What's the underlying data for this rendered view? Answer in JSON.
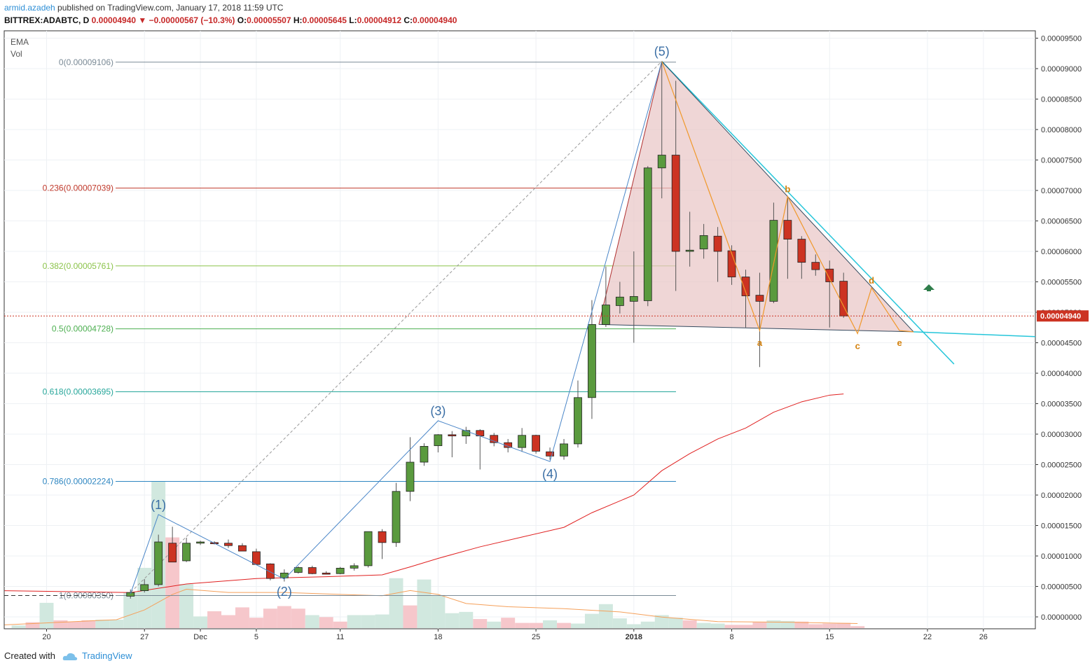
{
  "header": {
    "user": "armid.azadeh",
    "published": " published on TradingView.com, January 17, 2018 11:59 UTC",
    "symbol": "BITTREX:ADABTC, D",
    "last": "0.00004940",
    "arrow": "▼",
    "change": "−0.00000567 (−10.3%)",
    "o_label": "O:",
    "o": "0.00005507",
    "h_label": "H:",
    "h": "0.00005645",
    "l_label": "L:",
    "l": "0.00004912",
    "c_label": "C:",
    "c": "0.00004940"
  },
  "indicators": {
    "ema": "EMA",
    "vol": "Vol"
  },
  "footer": {
    "created": "Created with",
    "brand": "TradingView"
  },
  "colors": {
    "up": "#5a9a3e",
    "down": "#cc3322",
    "ema": "#e02020",
    "vol_ema": "#f5a05a",
    "wave": "#4a86c8",
    "abcde": "#f0982a",
    "triangle_edge": "#26c6da",
    "triangle_fill": "#e8c5c5",
    "up_arrow": "#2e7d4a",
    "price_tag": "#cc3322"
  },
  "chart_data": {
    "type": "candlestick",
    "price_axis": {
      "ticks": [
        "0.00009500",
        "0.00009000",
        "0.00008500",
        "0.00008000",
        "0.00007500",
        "0.00007000",
        "0.00006500",
        "0.00006000",
        "0.00005500",
        "0.00005000",
        "0.00004500",
        "0.00004000",
        "0.00003500",
        "0.00003000",
        "0.00002500",
        "0.00002000",
        "0.00001500",
        "0.00001000",
        "0.00000500",
        "0.00000000"
      ],
      "last_price": "0.00004940"
    },
    "time_axis": {
      "ticks": [
        {
          "i": 0,
          "label": "20"
        },
        {
          "i": 7,
          "label": "27"
        },
        {
          "i": 11,
          "label": "Dec"
        },
        {
          "i": 15,
          "label": "5"
        },
        {
          "i": 21,
          "label": "11"
        },
        {
          "i": 28,
          "label": "18"
        },
        {
          "i": 35,
          "label": "25"
        },
        {
          "i": 42,
          "label": "2018",
          "bold": true
        },
        {
          "i": 49,
          "label": "8"
        },
        {
          "i": 56,
          "label": "15"
        },
        {
          "i": 63,
          "label": "22"
        },
        {
          "i": 67,
          "label": "26"
        }
      ]
    },
    "candles": [
      {
        "i": 6,
        "o": 3.4e-06,
        "h": 4.5e-06,
        "l": 3e-06,
        "c": 4e-06
      },
      {
        "i": 7,
        "o": 4.3e-06,
        "h": 6.2e-06,
        "l": 4e-06,
        "c": 5.3e-06
      },
      {
        "i": 8,
        "o": 5.3e-06,
        "h": 1.35e-05,
        "l": 5e-06,
        "c": 1.23e-05
      },
      {
        "i": 9,
        "o": 1.21e-05,
        "h": 1.48e-05,
        "l": 9e-06,
        "c": 9e-06
      },
      {
        "i": 10,
        "o": 9.2e-06,
        "h": 1.3e-05,
        "l": 9e-06,
        "c": 1.21e-05
      },
      {
        "i": 11,
        "o": 1.21e-05,
        "h": 1.25e-05,
        "l": 1.18e-05,
        "c": 1.23e-05
      },
      {
        "i": 12,
        "o": 1.22e-05,
        "h": 1.24e-05,
        "l": 1.19e-05,
        "c": 1.2e-05
      },
      {
        "i": 13,
        "o": 1.21e-05,
        "h": 1.27e-05,
        "l": 1.13e-05,
        "c": 1.17e-05
      },
      {
        "i": 14,
        "o": 1.17e-05,
        "h": 1.21e-05,
        "l": 1.08e-05,
        "c": 1.08e-05
      },
      {
        "i": 15,
        "o": 1.07e-05,
        "h": 1.12e-05,
        "l": 8.6e-06,
        "c": 8.6e-06
      },
      {
        "i": 16,
        "o": 8.7e-06,
        "h": 8.8e-06,
        "l": 6e-06,
        "c": 6.3e-06
      },
      {
        "i": 17,
        "o": 6.4e-06,
        "h": 7.8e-06,
        "l": 5.8e-06,
        "c": 7.2e-06
      },
      {
        "i": 18,
        "o": 7.3e-06,
        "h": 8.3e-06,
        "l": 7.1e-06,
        "c": 8.1e-06
      },
      {
        "i": 19,
        "o": 8.1e-06,
        "h": 8.4e-06,
        "l": 7e-06,
        "c": 7.1e-06
      },
      {
        "i": 20,
        "o": 7.2e-06,
        "h": 7.5e-06,
        "l": 7e-06,
        "c": 7e-06
      },
      {
        "i": 21,
        "o": 7.1e-06,
        "h": 8.2e-06,
        "l": 7e-06,
        "c": 8e-06
      },
      {
        "i": 22,
        "o": 8e-06,
        "h": 8.8e-06,
        "l": 7.6e-06,
        "c": 8.4e-06
      },
      {
        "i": 23,
        "o": 8.4e-06,
        "h": 1.4e-05,
        "l": 8.1e-06,
        "c": 1.4e-05
      },
      {
        "i": 24,
        "o": 1.4e-05,
        "h": 1.44e-05,
        "l": 9.5e-06,
        "c": 1.22e-05
      },
      {
        "i": 25,
        "o": 1.22e-05,
        "h": 2.2e-05,
        "l": 1.15e-05,
        "c": 2.06e-05
      },
      {
        "i": 26,
        "o": 2.06e-05,
        "h": 2.95e-05,
        "l": 1.9e-05,
        "c": 2.54e-05
      },
      {
        "i": 27,
        "o": 2.54e-05,
        "h": 2.85e-05,
        "l": 2.48e-05,
        "c": 2.8e-05
      },
      {
        "i": 28,
        "o": 2.81e-05,
        "h": 3e-05,
        "l": 2.7e-05,
        "c": 2.99e-05
      },
      {
        "i": 29,
        "o": 2.99e-05,
        "h": 3.05e-05,
        "l": 2.62e-05,
        "c": 2.97e-05
      },
      {
        "i": 30,
        "o": 2.97e-05,
        "h": 3.12e-05,
        "l": 2.84e-05,
        "c": 3.06e-05
      },
      {
        "i": 31,
        "o": 3.06e-05,
        "h": 3.08e-05,
        "l": 2.42e-05,
        "c": 2.97e-05
      },
      {
        "i": 32,
        "o": 2.98e-05,
        "h": 3.02e-05,
        "l": 2.8e-05,
        "c": 2.86e-05
      },
      {
        "i": 33,
        "o": 2.86e-05,
        "h": 2.92e-05,
        "l": 2.7e-05,
        "c": 2.78e-05
      },
      {
        "i": 34,
        "o": 2.78e-05,
        "h": 3.1e-05,
        "l": 2.71e-05,
        "c": 2.98e-05
      },
      {
        "i": 35,
        "o": 2.98e-05,
        "h": 2.99e-05,
        "l": 2.68e-05,
        "c": 2.72e-05
      },
      {
        "i": 36,
        "o": 2.71e-05,
        "h": 2.78e-05,
        "l": 2.58e-05,
        "c": 2.64e-05
      },
      {
        "i": 37,
        "o": 2.64e-05,
        "h": 2.92e-05,
        "l": 2.58e-05,
        "c": 2.84e-05
      },
      {
        "i": 38,
        "o": 2.84e-05,
        "h": 3.88e-05,
        "l": 2.78e-05,
        "c": 3.6e-05
      },
      {
        "i": 39,
        "o": 3.6e-05,
        "h": 5.2e-05,
        "l": 3.25e-05,
        "c": 4.8e-05
      },
      {
        "i": 40,
        "o": 4.8e-05,
        "h": 5.75e-05,
        "l": 4.76e-05,
        "c": 5.12e-05
      },
      {
        "i": 41,
        "o": 5.11e-05,
        "h": 5.5e-05,
        "l": 4.98e-05,
        "c": 5.25e-05
      },
      {
        "i": 42,
        "o": 5.18e-05,
        "h": 6e-05,
        "l": 4.5e-05,
        "c": 5.26e-05
      },
      {
        "i": 43,
        "o": 5.19e-05,
        "h": 7.4e-05,
        "l": 5.1e-05,
        "c": 7.37e-05
      },
      {
        "i": 44,
        "o": 7.37e-05,
        "h": 9.12e-05,
        "l": 6.87e-05,
        "c": 7.58e-05
      },
      {
        "i": 45,
        "o": 7.58e-05,
        "h": 8.8e-05,
        "l": 5.35e-05,
        "c": 6e-05
      },
      {
        "i": 46,
        "o": 6e-05,
        "h": 6.65e-05,
        "l": 5.75e-05,
        "c": 6.02e-05
      },
      {
        "i": 47,
        "o": 6.04e-05,
        "h": 6.45e-05,
        "l": 5.88e-05,
        "c": 6.26e-05
      },
      {
        "i": 48,
        "o": 6.25e-05,
        "h": 6.4e-05,
        "l": 5.5e-05,
        "c": 6e-05
      },
      {
        "i": 49,
        "o": 6.01e-05,
        "h": 6.1e-05,
        "l": 5.45e-05,
        "c": 5.58e-05
      },
      {
        "i": 50,
        "o": 5.58e-05,
        "h": 5.7e-05,
        "l": 4.75e-05,
        "c": 5.27e-05
      },
      {
        "i": 51,
        "o": 5.28e-05,
        "h": 5.65e-05,
        "l": 4.1e-05,
        "c": 5.18e-05
      },
      {
        "i": 52,
        "o": 5.18e-05,
        "h": 6.8e-05,
        "l": 5.15e-05,
        "c": 6.51e-05
      },
      {
        "i": 53,
        "o": 6.51e-05,
        "h": 6.9e-05,
        "l": 5.55e-05,
        "c": 6.2e-05
      },
      {
        "i": 54,
        "o": 6.2e-05,
        "h": 6.25e-05,
        "l": 5.55e-05,
        "c": 5.82e-05
      },
      {
        "i": 55,
        "o": 5.82e-05,
        "h": 5.95e-05,
        "l": 5.6e-05,
        "c": 5.7e-05
      },
      {
        "i": 56,
        "o": 5.71e-05,
        "h": 5.85e-05,
        "l": 4.75e-05,
        "c": 5.5e-05
      },
      {
        "i": 57,
        "o": 5.51e-05,
        "h": 5.65e-05,
        "l": 4.91e-05,
        "c": 4.94e-05
      }
    ],
    "volume": [
      {
        "i": -3,
        "v": 0.06,
        "up": false
      },
      {
        "i": -2,
        "v": 0.04,
        "up": true
      },
      {
        "i": -1,
        "v": 0.09,
        "up": false
      },
      {
        "i": 0,
        "v": 0.39,
        "up": true
      },
      {
        "i": 1,
        "v": 0.12,
        "up": false
      },
      {
        "i": 2,
        "v": 0.1,
        "up": false
      },
      {
        "i": 3,
        "v": 0.12,
        "up": false
      },
      {
        "i": 4,
        "v": 0.13,
        "up": true
      },
      {
        "i": 5,
        "v": 0.13,
        "up": true
      },
      {
        "i": 6,
        "v": 0.55,
        "up": true
      },
      {
        "i": 7,
        "v": 0.93,
        "up": true
      },
      {
        "i": 8,
        "v": 2.27,
        "up": true
      },
      {
        "i": 9,
        "v": 1.4,
        "up": false
      },
      {
        "i": 10,
        "v": 0.68,
        "up": true
      },
      {
        "i": 11,
        "v": 0.18,
        "up": true
      },
      {
        "i": 12,
        "v": 0.26,
        "up": false
      },
      {
        "i": 13,
        "v": 0.2,
        "up": false
      },
      {
        "i": 14,
        "v": 0.32,
        "up": false
      },
      {
        "i": 15,
        "v": 0.16,
        "up": false
      },
      {
        "i": 16,
        "v": 0.3,
        "up": false
      },
      {
        "i": 17,
        "v": 0.34,
        "up": false
      },
      {
        "i": 18,
        "v": 0.3,
        "up": false
      },
      {
        "i": 19,
        "v": 0.2,
        "up": true
      },
      {
        "i": 20,
        "v": 0.17,
        "up": false
      },
      {
        "i": 21,
        "v": 0.1,
        "up": false
      },
      {
        "i": 22,
        "v": 0.2,
        "up": true
      },
      {
        "i": 23,
        "v": 0.2,
        "up": true
      },
      {
        "i": 24,
        "v": 0.21,
        "up": true
      },
      {
        "i": 25,
        "v": 0.77,
        "up": true
      },
      {
        "i": 26,
        "v": 0.35,
        "up": false
      },
      {
        "i": 27,
        "v": 0.75,
        "up": true
      },
      {
        "i": 28,
        "v": 0.51,
        "up": true
      },
      {
        "i": 29,
        "v": 0.23,
        "up": true
      },
      {
        "i": 30,
        "v": 0.25,
        "up": true
      },
      {
        "i": 31,
        "v": 0.14,
        "up": false
      },
      {
        "i": 32,
        "v": 0.1,
        "up": true
      },
      {
        "i": 33,
        "v": 0.16,
        "up": false
      },
      {
        "i": 34,
        "v": 0.08,
        "up": false
      },
      {
        "i": 35,
        "v": 0.08,
        "up": false
      },
      {
        "i": 36,
        "v": 0.12,
        "up": true
      },
      {
        "i": 37,
        "v": 0.08,
        "up": false
      },
      {
        "i": 38,
        "v": 0.07,
        "up": true
      },
      {
        "i": 39,
        "v": 0.22,
        "up": true
      },
      {
        "i": 40,
        "v": 0.37,
        "up": true
      },
      {
        "i": 41,
        "v": 0.15,
        "up": true
      },
      {
        "i": 42,
        "v": 0.06,
        "up": true
      },
      {
        "i": 43,
        "v": 0.1,
        "up": true
      },
      {
        "i": 44,
        "v": 0.2,
        "up": true
      },
      {
        "i": 45,
        "v": 0.16,
        "up": true
      },
      {
        "i": 46,
        "v": 0.12,
        "up": false
      },
      {
        "i": 47,
        "v": 0.08,
        "up": true
      },
      {
        "i": 48,
        "v": 0.07,
        "up": true
      },
      {
        "i": 49,
        "v": 0.05,
        "up": false
      },
      {
        "i": 50,
        "v": 0.05,
        "up": false
      },
      {
        "i": 51,
        "v": 0.09,
        "up": false
      },
      {
        "i": 52,
        "v": 0.12,
        "up": true
      },
      {
        "i": 53,
        "v": 0.11,
        "up": true
      },
      {
        "i": 54,
        "v": 0.1,
        "up": false
      },
      {
        "i": 55,
        "v": 0.06,
        "up": false
      },
      {
        "i": 56,
        "v": 0.07,
        "up": false
      },
      {
        "i": 57,
        "v": 0.08,
        "up": false
      },
      {
        "i": 58,
        "v": 0.03,
        "up": false
      }
    ],
    "ema_line": [
      [
        -3,
        4.3e-06
      ],
      [
        6,
        4e-06
      ],
      [
        10,
        5.4e-06
      ],
      [
        15,
        6.3e-06
      ],
      [
        20,
        6.6e-06
      ],
      [
        24,
        6.9e-06
      ],
      [
        26,
        8.2e-06
      ],
      [
        28,
        9.6e-06
      ],
      [
        31,
        1.15e-05
      ],
      [
        34,
        1.31e-05
      ],
      [
        37,
        1.47e-05
      ],
      [
        39,
        1.71e-05
      ],
      [
        42,
        2e-05
      ],
      [
        44,
        2.4e-05
      ],
      [
        46,
        2.68e-05
      ],
      [
        48,
        2.92e-05
      ],
      [
        50,
        3.1e-05
      ],
      [
        52,
        3.36e-05
      ],
      [
        54,
        3.53e-05
      ],
      [
        56,
        3.64e-05
      ],
      [
        57,
        3.66e-05
      ]
    ],
    "vol_ema_line": [
      [
        -3,
        0.05
      ],
      [
        5,
        0.13
      ],
      [
        7,
        0.28
      ],
      [
        9,
        0.52
      ],
      [
        10,
        0.6
      ],
      [
        13,
        0.55
      ],
      [
        17,
        0.55
      ],
      [
        21,
        0.52
      ],
      [
        24,
        0.5
      ],
      [
        26,
        0.58
      ],
      [
        28,
        0.52
      ],
      [
        30,
        0.38
      ],
      [
        33,
        0.33
      ],
      [
        37,
        0.3
      ],
      [
        41,
        0.25
      ],
      [
        44,
        0.17
      ],
      [
        48,
        0.1
      ],
      [
        53,
        0.09
      ],
      [
        58,
        0.07
      ]
    ],
    "fib_levels": [
      {
        "label": "0(0.00009106)",
        "value": 9.106e-05,
        "color": "#7a8a96"
      },
      {
        "label": "0.236(0.00007039)",
        "value": 7.039e-05,
        "color": "#c0392b"
      },
      {
        "label": "0.382(0.00005761)",
        "value": 5.761e-05,
        "color": "#8bc34a"
      },
      {
        "label": "0.5(0.00004728)",
        "value": 4.728e-05,
        "color": "#4caf50"
      },
      {
        "label": "0.618(0.00003695)",
        "value": 3.695e-05,
        "color": "#26a69a"
      },
      {
        "label": "0.786(0.00002224)",
        "value": 2.224e-05,
        "color": "#2e86c1"
      },
      {
        "label": "1(0.00000350)",
        "value": 3.5e-06,
        "color": "#7a8a96"
      }
    ],
    "elliott_waves": [
      {
        "label": "(1)",
        "i": 8,
        "p": 1.68e-05,
        "pos": "above"
      },
      {
        "label": "(2)",
        "i": 17,
        "p": 6.2e-06,
        "pos": "below"
      },
      {
        "label": "(3)",
        "i": 28,
        "p": 3.22e-05,
        "pos": "above"
      },
      {
        "label": "(4)",
        "i": 36,
        "p": 2.55e-05,
        "pos": "below"
      },
      {
        "label": "(5)",
        "i": 44,
        "p": 9.12e-05,
        "pos": "above"
      }
    ],
    "abcde_points": [
      {
        "label": "",
        "i": 44,
        "p": 9.12e-05
      },
      {
        "label": "a",
        "i": 51,
        "p": 4.7e-05
      },
      {
        "label": "b",
        "i": 53,
        "p": 6.9e-05
      },
      {
        "label": "c",
        "i": 58,
        "p": 4.65e-05
      },
      {
        "label": "d",
        "i": 59,
        "p": 5.4e-05
      },
      {
        "label": "e",
        "i": 61,
        "p": 4.7e-05
      },
      {
        "label": "",
        "i": 62,
        "p": 4.68e-05
      }
    ]
  }
}
